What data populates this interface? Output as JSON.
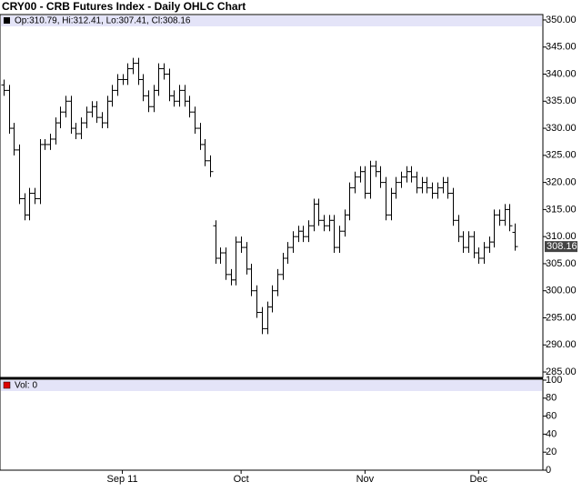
{
  "chart_data": {
    "type": "ohlc",
    "title": "CRY00 - CRB Futures Index - Daily OHLC Chart",
    "legend": "Op:310.79, Hi:312.41, Lo:307.41, Cl:308.16",
    "volume_label": "Vol: 0",
    "categories": [
      null,
      null,
      null,
      null,
      null,
      null,
      null,
      null,
      null,
      null,
      null,
      null,
      null,
      null,
      null,
      null,
      null,
      null,
      null,
      null,
      null,
      null,
      null,
      "Sep 11",
      null,
      null,
      null,
      null,
      null,
      null,
      null,
      null,
      null,
      null,
      null,
      null,
      null,
      null,
      null,
      null,
      null,
      null,
      null,
      null,
      null,
      null,
      "Oct",
      null,
      null,
      null,
      null,
      null,
      null,
      null,
      null,
      null,
      null,
      null,
      null,
      null,
      null,
      null,
      null,
      null,
      null,
      null,
      null,
      null,
      null,
      null,
      "Nov",
      null,
      null,
      null,
      null,
      null,
      null,
      null,
      null,
      null,
      null,
      null,
      null,
      null,
      null,
      null,
      null,
      null,
      null,
      null,
      null,
      null,
      "Dec",
      null,
      null,
      null,
      null,
      null,
      null,
      null
    ],
    "open": [
      338,
      337,
      330,
      326,
      317,
      314,
      318,
      317,
      327,
      327,
      328,
      331,
      333,
      335,
      330,
      329,
      331,
      333,
      334,
      332,
      331,
      335,
      337,
      339,
      339,
      341,
      342,
      339,
      336,
      334,
      337,
      341,
      340,
      336,
      335,
      337,
      335,
      333,
      330,
      327,
      324,
      312,
      306,
      307,
      303,
      302,
      309,
      308,
      304,
      300,
      296,
      293,
      297,
      300,
      303,
      306,
      308,
      310,
      311,
      310,
      312,
      316,
      313,
      312,
      313,
      308,
      311,
      314,
      319,
      321,
      322,
      318,
      323,
      322,
      320,
      314,
      318,
      320,
      321,
      322,
      321,
      319,
      320,
      319,
      318,
      319,
      320,
      318,
      313,
      310,
      308,
      310,
      307,
      306,
      308,
      309,
      314,
      313,
      315,
      310.79
    ],
    "high": [
      339,
      338,
      331,
      327,
      318,
      319,
      319,
      328,
      328,
      329,
      332,
      334,
      336,
      336,
      331,
      332,
      334,
      335,
      335,
      333,
      336,
      338,
      340,
      340,
      342,
      343,
      343,
      340,
      337,
      338,
      342,
      342,
      341,
      337,
      338,
      338,
      336,
      334,
      331,
      328,
      325,
      313,
      308,
      308,
      304,
      310,
      310,
      309,
      305,
      301,
      297,
      298,
      301,
      304,
      307,
      309,
      311,
      312,
      312,
      313,
      317,
      317,
      314,
      314,
      314,
      312,
      315,
      320,
      322,
      323,
      323,
      324,
      324,
      323,
      321,
      319,
      321,
      322,
      323,
      323,
      322,
      321,
      321,
      320,
      320,
      321,
      321,
      319,
      314,
      311,
      311,
      311,
      308,
      309,
      310,
      315,
      315,
      316,
      316,
      312.41
    ],
    "low": [
      336,
      329,
      325,
      316,
      313,
      313,
      316,
      316,
      326,
      326,
      327,
      330,
      332,
      329,
      328,
      328,
      330,
      332,
      331,
      330,
      330,
      334,
      336,
      338,
      338,
      340,
      338,
      335,
      333,
      333,
      336,
      339,
      335,
      334,
      334,
      334,
      332,
      329,
      326,
      323,
      321,
      305,
      305,
      302,
      301,
      301,
      307,
      303,
      299,
      295,
      292,
      292,
      296,
      299,
      302,
      305,
      307,
      309,
      309,
      309,
      311,
      312,
      311,
      311,
      307,
      307,
      310,
      313,
      318,
      320,
      317,
      317,
      321,
      319,
      313,
      313,
      317,
      319,
      320,
      320,
      318,
      318,
      318,
      317,
      317,
      318,
      317,
      312,
      309,
      307,
      307,
      306,
      305,
      305,
      307,
      308,
      312,
      312,
      311,
      307.41
    ],
    "close": [
      337,
      330,
      326,
      317,
      314,
      318,
      317,
      327,
      327,
      328,
      331,
      333,
      335,
      330,
      329,
      331,
      333,
      334,
      332,
      331,
      335,
      337,
      339,
      339,
      341,
      342,
      339,
      336,
      334,
      337,
      341,
      340,
      336,
      335,
      337,
      335,
      333,
      330,
      327,
      324,
      322,
      306,
      307,
      303,
      302,
      309,
      308,
      304,
      300,
      296,
      293,
      297,
      300,
      303,
      306,
      308,
      310,
      311,
      310,
      312,
      316,
      313,
      312,
      313,
      308,
      311,
      314,
      319,
      321,
      322,
      318,
      323,
      322,
      320,
      314,
      318,
      320,
      321,
      322,
      321,
      319,
      320,
      319,
      318,
      319,
      320,
      318,
      313,
      310,
      308,
      310,
      307,
      306,
      308,
      309,
      314,
      313,
      315,
      312,
      308.16
    ],
    "ylim": [
      284,
      351
    ],
    "yticks": [
      {
        "value": 285,
        "label": "285.00"
      },
      {
        "value": 290,
        "label": "290.00"
      },
      {
        "value": 295,
        "label": "295.00"
      },
      {
        "value": 300,
        "label": "300.00"
      },
      {
        "value": 305,
        "label": "305.00"
      },
      {
        "value": 310,
        "label": "310.00"
      },
      {
        "value": 315,
        "label": "315.00"
      },
      {
        "value": 320,
        "label": "320.00"
      },
      {
        "value": 325,
        "label": "325.00"
      },
      {
        "value": 330,
        "label": "330.00"
      },
      {
        "value": 335,
        "label": "335.00"
      },
      {
        "value": 340,
        "label": "340.00"
      },
      {
        "value": 345,
        "label": "345.00"
      },
      {
        "value": 350,
        "label": "350.00"
      }
    ],
    "volume_ylim": [
      0,
      100
    ],
    "volume_yticks": [
      0,
      20,
      40,
      60,
      80,
      100
    ],
    "color": "#000000"
  }
}
